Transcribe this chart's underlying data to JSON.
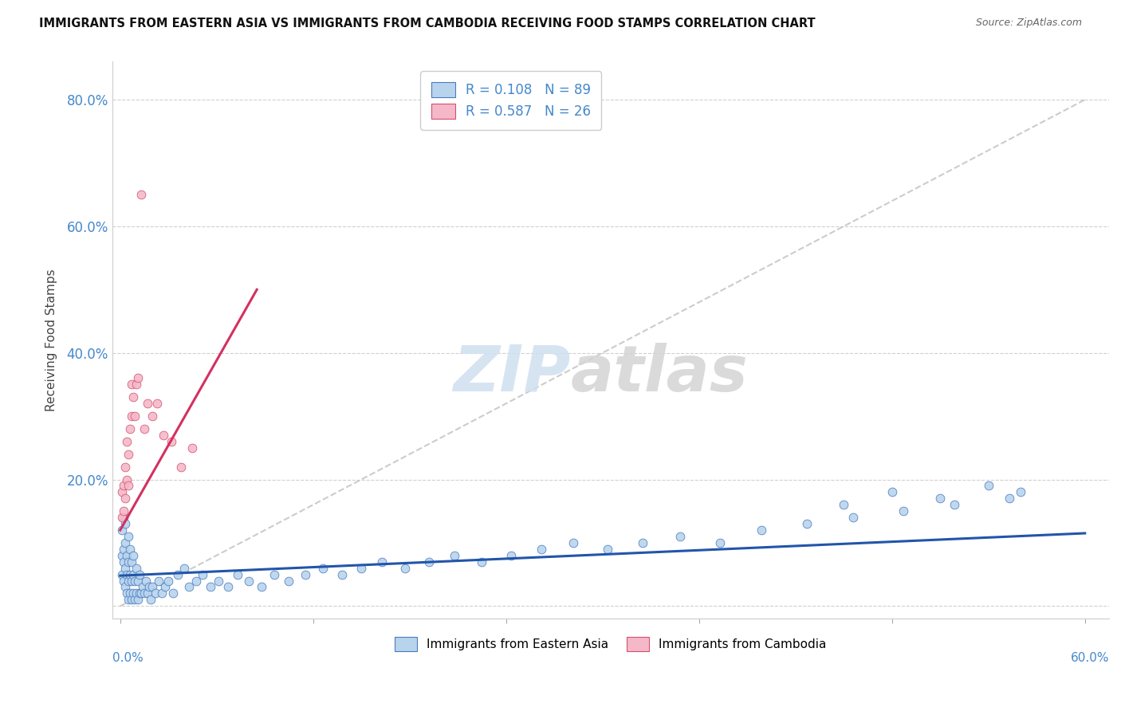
{
  "title": "IMMIGRANTS FROM EASTERN ASIA VS IMMIGRANTS FROM CAMBODIA RECEIVING FOOD STAMPS CORRELATION CHART",
  "source": "Source: ZipAtlas.com",
  "ylabel": "Receiving Food Stamps",
  "legend_label_1": "Immigrants from Eastern Asia",
  "legend_label_2": "Immigrants from Cambodia",
  "r_eastern_asia": 0.108,
  "n_eastern_asia": 89,
  "r_cambodia": 0.587,
  "n_cambodia": 26,
  "color_eastern_asia_fill": "#b8d4ed",
  "color_eastern_asia_edge": "#4a7abf",
  "color_cambodia_fill": "#f5b8c8",
  "color_cambodia_edge": "#d45070",
  "color_line_blue": "#2255aa",
  "color_line_pink": "#d43060",
  "color_gray_dash": "#c0c0c0",
  "color_ytick": "#4488cc",
  "xlim": [
    0.0,
    0.6
  ],
  "ylim": [
    0.0,
    0.84
  ],
  "yticks": [
    0.0,
    0.2,
    0.4,
    0.6,
    0.8
  ],
  "ytick_labels": [
    "",
    "20.0%",
    "40.0%",
    "60.0%",
    "80.0%"
  ],
  "watermark_zip_color": "#ddeeff",
  "watermark_atlas_color": "#d8d8d8",
  "ea_x": [
    0.001,
    0.001,
    0.001,
    0.002,
    0.002,
    0.002,
    0.002,
    0.003,
    0.003,
    0.003,
    0.003,
    0.004,
    0.004,
    0.004,
    0.005,
    0.005,
    0.005,
    0.005,
    0.006,
    0.006,
    0.006,
    0.007,
    0.007,
    0.007,
    0.008,
    0.008,
    0.008,
    0.009,
    0.009,
    0.01,
    0.01,
    0.011,
    0.011,
    0.012,
    0.012,
    0.013,
    0.014,
    0.015,
    0.016,
    0.017,
    0.018,
    0.019,
    0.02,
    0.022,
    0.024,
    0.026,
    0.028,
    0.03,
    0.033,
    0.036,
    0.04,
    0.043,
    0.047,
    0.051,
    0.056,
    0.061,
    0.067,
    0.073,
    0.08,
    0.088,
    0.096,
    0.105,
    0.115,
    0.126,
    0.138,
    0.15,
    0.163,
    0.177,
    0.192,
    0.208,
    0.225,
    0.243,
    0.262,
    0.282,
    0.303,
    0.325,
    0.348,
    0.373,
    0.399,
    0.427,
    0.456,
    0.487,
    0.519,
    0.553,
    0.56,
    0.54,
    0.51,
    0.48,
    0.45
  ],
  "ea_y": [
    0.05,
    0.08,
    0.12,
    0.04,
    0.07,
    0.09,
    0.14,
    0.03,
    0.06,
    0.1,
    0.13,
    0.02,
    0.05,
    0.08,
    0.01,
    0.04,
    0.07,
    0.11,
    0.02,
    0.05,
    0.09,
    0.01,
    0.04,
    0.07,
    0.02,
    0.05,
    0.08,
    0.01,
    0.04,
    0.02,
    0.06,
    0.01,
    0.04,
    0.02,
    0.05,
    0.02,
    0.03,
    0.02,
    0.04,
    0.02,
    0.03,
    0.01,
    0.03,
    0.02,
    0.04,
    0.02,
    0.03,
    0.04,
    0.02,
    0.05,
    0.06,
    0.03,
    0.04,
    0.05,
    0.03,
    0.04,
    0.03,
    0.05,
    0.04,
    0.03,
    0.05,
    0.04,
    0.05,
    0.06,
    0.05,
    0.06,
    0.07,
    0.06,
    0.07,
    0.08,
    0.07,
    0.08,
    0.09,
    0.1,
    0.09,
    0.1,
    0.11,
    0.1,
    0.12,
    0.13,
    0.14,
    0.15,
    0.16,
    0.17,
    0.18,
    0.19,
    0.17,
    0.18,
    0.16
  ],
  "cam_x": [
    0.001,
    0.001,
    0.002,
    0.002,
    0.003,
    0.003,
    0.004,
    0.004,
    0.005,
    0.005,
    0.006,
    0.007,
    0.007,
    0.008,
    0.009,
    0.01,
    0.011,
    0.013,
    0.015,
    0.017,
    0.02,
    0.023,
    0.027,
    0.032,
    0.038,
    0.045
  ],
  "cam_y": [
    0.14,
    0.18,
    0.15,
    0.19,
    0.17,
    0.22,
    0.2,
    0.26,
    0.19,
    0.24,
    0.28,
    0.3,
    0.35,
    0.33,
    0.3,
    0.35,
    0.36,
    0.65,
    0.28,
    0.32,
    0.3,
    0.32,
    0.27,
    0.26,
    0.22,
    0.25
  ],
  "ea_line_x": [
    0.0,
    0.6
  ],
  "ea_line_y": [
    0.048,
    0.115
  ],
  "cam_line_x": [
    0.0,
    0.085
  ],
  "cam_line_y": [
    0.12,
    0.5
  ]
}
